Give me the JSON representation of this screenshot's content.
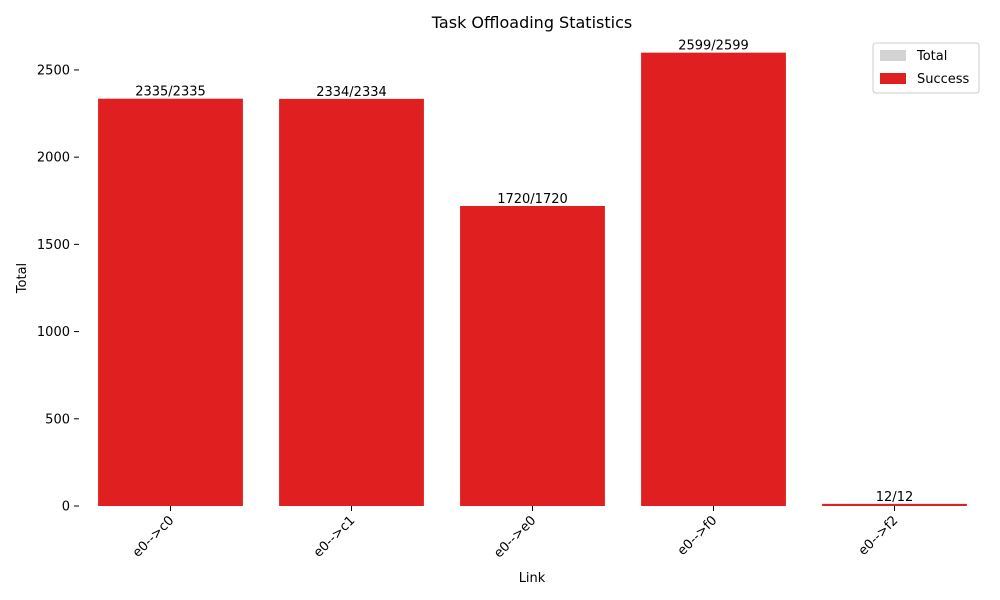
{
  "chart_data": {
    "type": "bar",
    "title": "Task Offloading Statistics",
    "xlabel": "Link",
    "ylabel": "Total",
    "categories": [
      "e0-->c0",
      "e0-->c1",
      "e0-->e0",
      "e0-->f0",
      "e0-->f2"
    ],
    "series": [
      {
        "name": "Total",
        "values": [
          2335,
          2334,
          1720,
          2599,
          12
        ],
        "color": "#d3d3d3"
      },
      {
        "name": "Success",
        "values": [
          2335,
          2334,
          1720,
          2599,
          12
        ],
        "color": "#e02020"
      }
    ],
    "bar_labels": [
      "2335/2335",
      "2334/2334",
      "1720/1720",
      "2599/2599",
      "12/12"
    ],
    "yticks": [
      0,
      500,
      1000,
      1500,
      2000,
      2500
    ],
    "ylim": [
      0,
      2729
    ],
    "grid": false,
    "legend_position": "top-right",
    "x_tick_rotation": 45
  }
}
